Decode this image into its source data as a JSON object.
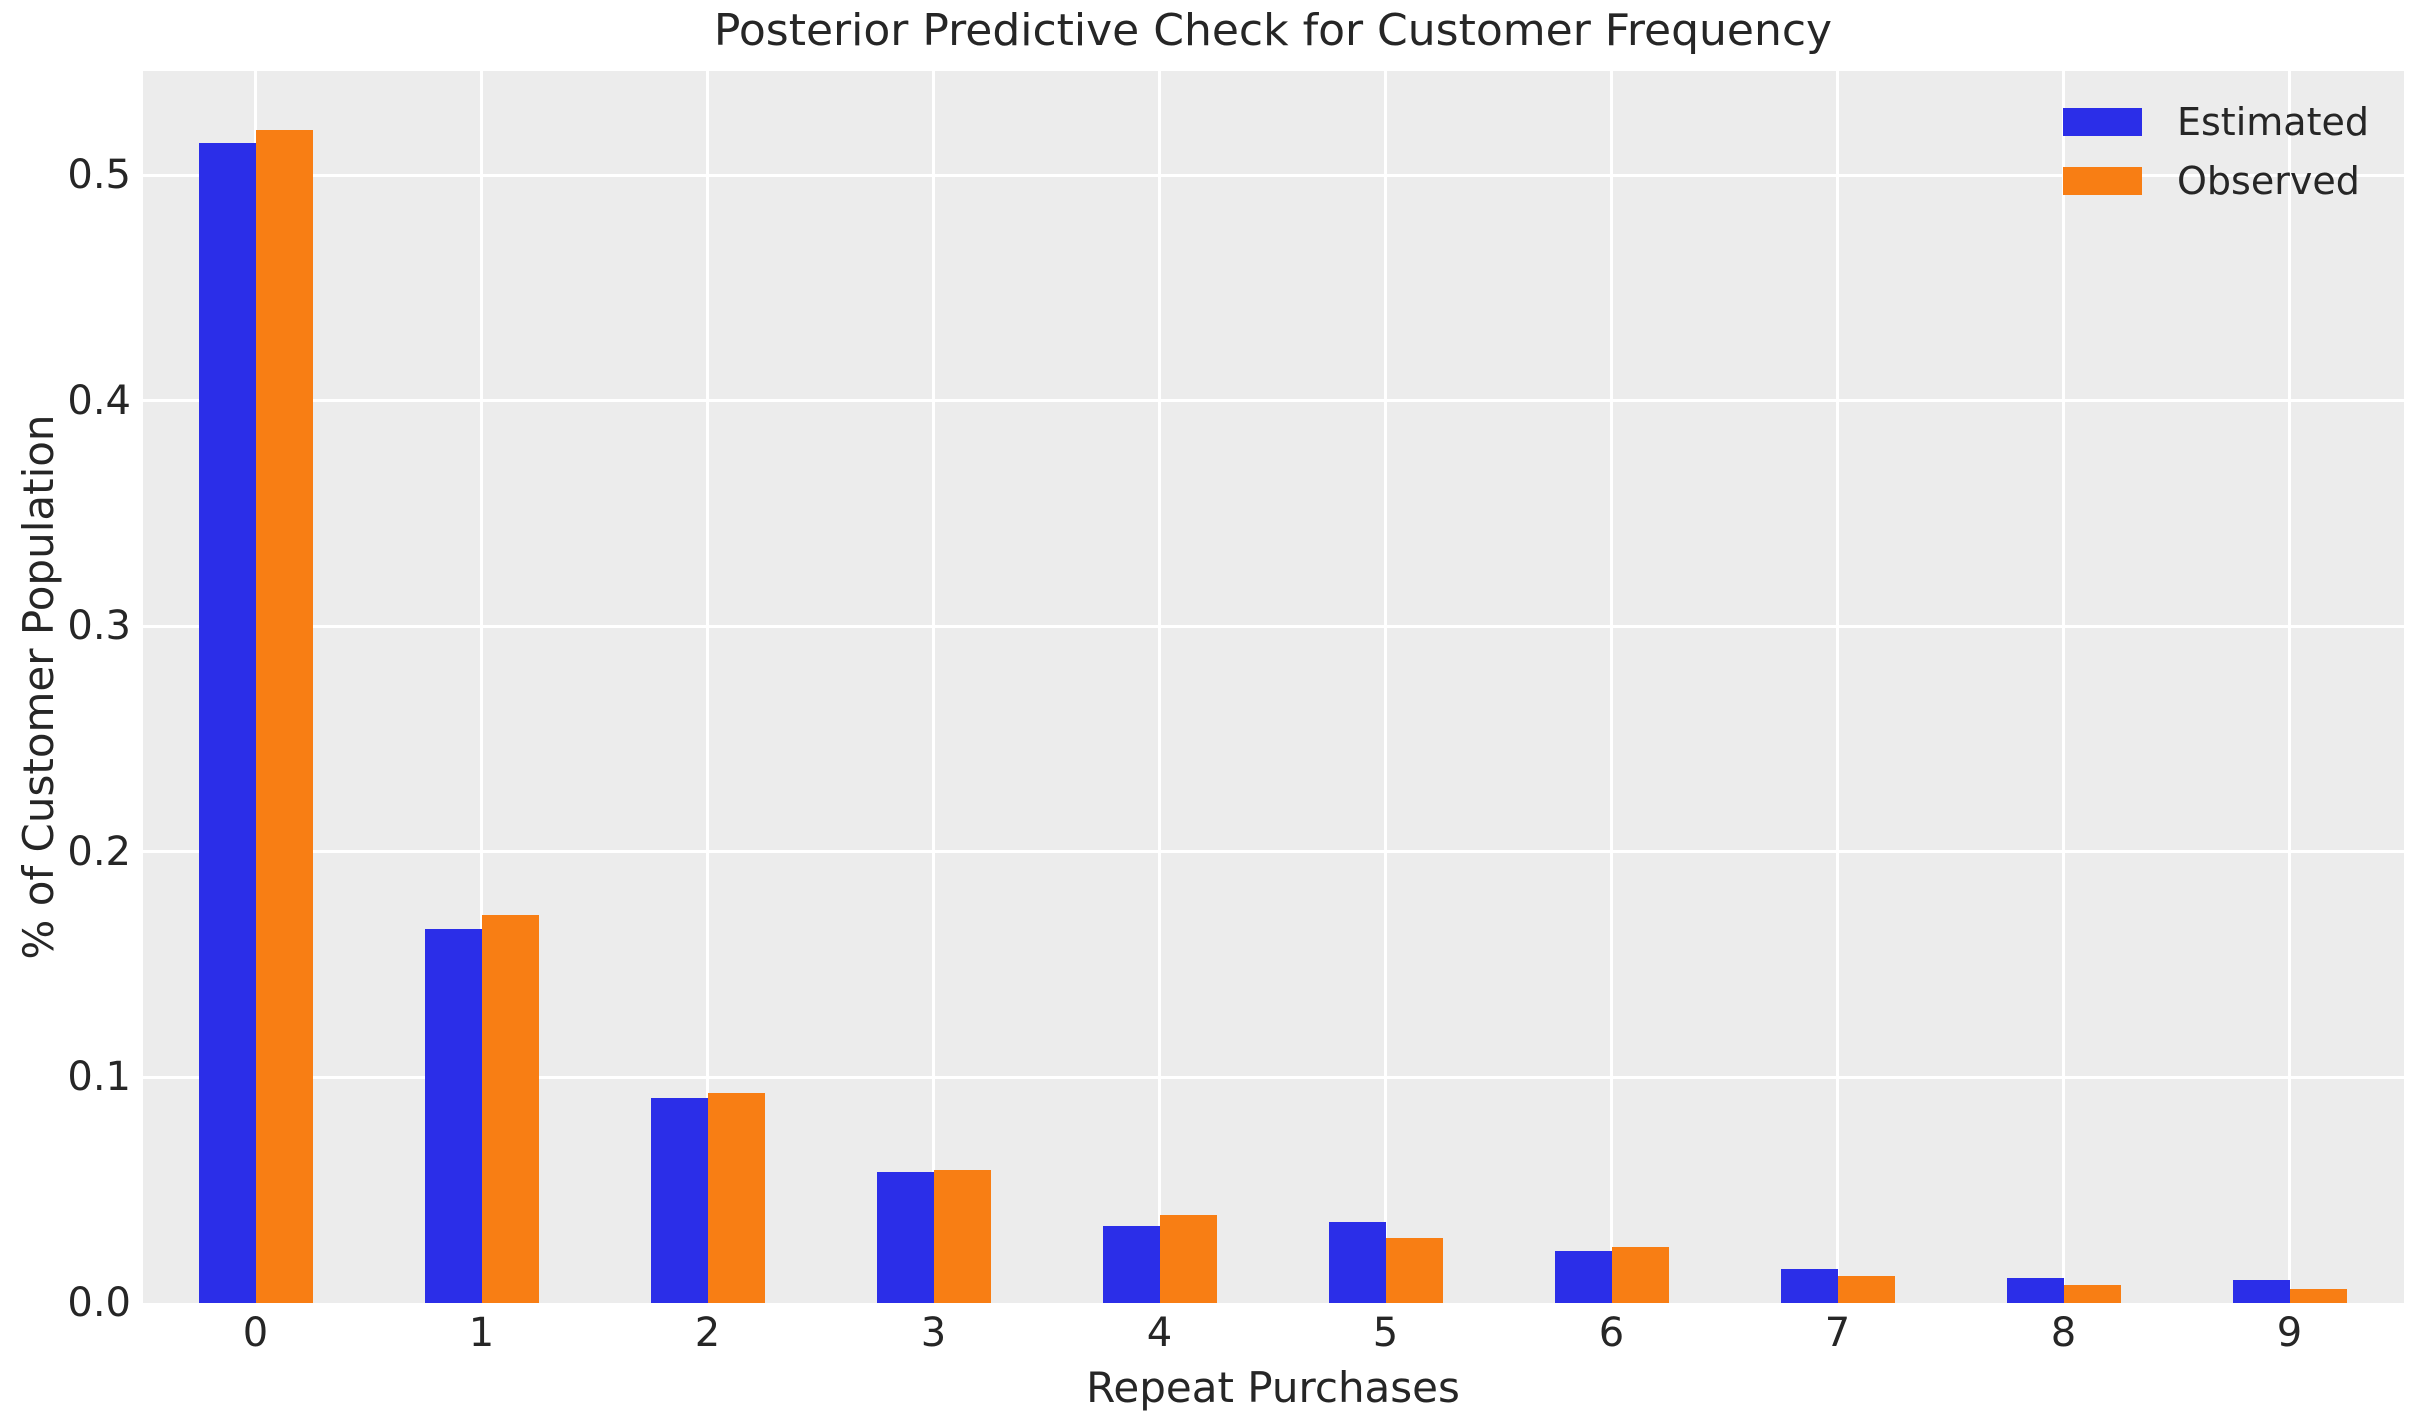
{
  "figure": {
    "background": "#ffffff",
    "plot_background": "#ececec",
    "grid_color": "#ffffff",
    "text_color": "#262626"
  },
  "chart_data": {
    "type": "bar",
    "title": "Posterior Predictive Check for Customer Frequency",
    "xlabel": "Repeat Purchases",
    "ylabel": "% of Customer Population",
    "categories": [
      "0",
      "1",
      "2",
      "3",
      "4",
      "5",
      "6",
      "7",
      "8",
      "9"
    ],
    "series": [
      {
        "name": "Estimated",
        "color": "#2b2ee8",
        "values": [
          0.514,
          0.166,
          0.091,
          0.058,
          0.034,
          0.036,
          0.023,
          0.015,
          0.011,
          0.01
        ]
      },
      {
        "name": "Observed",
        "color": "#f87e14",
        "values": [
          0.52,
          0.172,
          0.093,
          0.059,
          0.039,
          0.029,
          0.025,
          0.012,
          0.008,
          0.006
        ]
      }
    ],
    "ylim": [
      0,
      0.546
    ],
    "yticks": [
      "0.0",
      "0.1",
      "0.2",
      "0.3",
      "0.4",
      "0.5"
    ],
    "grid": true,
    "legend_position": "upper right"
  }
}
